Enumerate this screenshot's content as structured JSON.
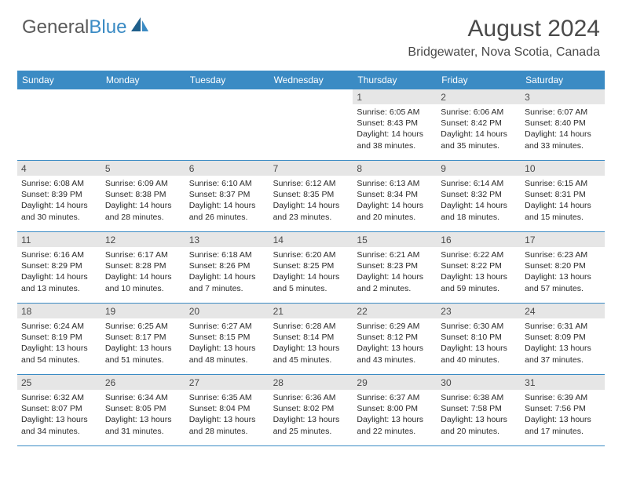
{
  "logo": {
    "text1": "General",
    "text2": "Blue"
  },
  "header": {
    "month_title": "August 2024",
    "location": "Bridgewater, Nova Scotia, Canada"
  },
  "colors": {
    "brand_blue": "#3b8bc4",
    "logo_gray": "#5a5a5a",
    "daynum_bg": "#e6e6e6",
    "text": "#4a4a4a",
    "body_text": "#2a2a2a",
    "background": "#ffffff"
  },
  "typography": {
    "month_fontsize": 30,
    "location_fontsize": 16,
    "dow_fontsize": 12,
    "daynum_fontsize": 12,
    "body_fontsize": 10.5
  },
  "days_of_week": [
    "Sunday",
    "Monday",
    "Tuesday",
    "Wednesday",
    "Thursday",
    "Friday",
    "Saturday"
  ],
  "labels": {
    "sunrise": "Sunrise:",
    "sunset": "Sunset:",
    "daylight": "Daylight:"
  },
  "calendar": {
    "type": "calendar",
    "weeks": [
      [
        null,
        null,
        null,
        null,
        {
          "n": "1",
          "sr": "6:05 AM",
          "ss": "8:43 PM",
          "dl": "14 hours and 38 minutes."
        },
        {
          "n": "2",
          "sr": "6:06 AM",
          "ss": "8:42 PM",
          "dl": "14 hours and 35 minutes."
        },
        {
          "n": "3",
          "sr": "6:07 AM",
          "ss": "8:40 PM",
          "dl": "14 hours and 33 minutes."
        }
      ],
      [
        {
          "n": "4",
          "sr": "6:08 AM",
          "ss": "8:39 PM",
          "dl": "14 hours and 30 minutes."
        },
        {
          "n": "5",
          "sr": "6:09 AM",
          "ss": "8:38 PM",
          "dl": "14 hours and 28 minutes."
        },
        {
          "n": "6",
          "sr": "6:10 AM",
          "ss": "8:37 PM",
          "dl": "14 hours and 26 minutes."
        },
        {
          "n": "7",
          "sr": "6:12 AM",
          "ss": "8:35 PM",
          "dl": "14 hours and 23 minutes."
        },
        {
          "n": "8",
          "sr": "6:13 AM",
          "ss": "8:34 PM",
          "dl": "14 hours and 20 minutes."
        },
        {
          "n": "9",
          "sr": "6:14 AM",
          "ss": "8:32 PM",
          "dl": "14 hours and 18 minutes."
        },
        {
          "n": "10",
          "sr": "6:15 AM",
          "ss": "8:31 PM",
          "dl": "14 hours and 15 minutes."
        }
      ],
      [
        {
          "n": "11",
          "sr": "6:16 AM",
          "ss": "8:29 PM",
          "dl": "14 hours and 13 minutes."
        },
        {
          "n": "12",
          "sr": "6:17 AM",
          "ss": "8:28 PM",
          "dl": "14 hours and 10 minutes."
        },
        {
          "n": "13",
          "sr": "6:18 AM",
          "ss": "8:26 PM",
          "dl": "14 hours and 7 minutes."
        },
        {
          "n": "14",
          "sr": "6:20 AM",
          "ss": "8:25 PM",
          "dl": "14 hours and 5 minutes."
        },
        {
          "n": "15",
          "sr": "6:21 AM",
          "ss": "8:23 PM",
          "dl": "14 hours and 2 minutes."
        },
        {
          "n": "16",
          "sr": "6:22 AM",
          "ss": "8:22 PM",
          "dl": "13 hours and 59 minutes."
        },
        {
          "n": "17",
          "sr": "6:23 AM",
          "ss": "8:20 PM",
          "dl": "13 hours and 57 minutes."
        }
      ],
      [
        {
          "n": "18",
          "sr": "6:24 AM",
          "ss": "8:19 PM",
          "dl": "13 hours and 54 minutes."
        },
        {
          "n": "19",
          "sr": "6:25 AM",
          "ss": "8:17 PM",
          "dl": "13 hours and 51 minutes."
        },
        {
          "n": "20",
          "sr": "6:27 AM",
          "ss": "8:15 PM",
          "dl": "13 hours and 48 minutes."
        },
        {
          "n": "21",
          "sr": "6:28 AM",
          "ss": "8:14 PM",
          "dl": "13 hours and 45 minutes."
        },
        {
          "n": "22",
          "sr": "6:29 AM",
          "ss": "8:12 PM",
          "dl": "13 hours and 43 minutes."
        },
        {
          "n": "23",
          "sr": "6:30 AM",
          "ss": "8:10 PM",
          "dl": "13 hours and 40 minutes."
        },
        {
          "n": "24",
          "sr": "6:31 AM",
          "ss": "8:09 PM",
          "dl": "13 hours and 37 minutes."
        }
      ],
      [
        {
          "n": "25",
          "sr": "6:32 AM",
          "ss": "8:07 PM",
          "dl": "13 hours and 34 minutes."
        },
        {
          "n": "26",
          "sr": "6:34 AM",
          "ss": "8:05 PM",
          "dl": "13 hours and 31 minutes."
        },
        {
          "n": "27",
          "sr": "6:35 AM",
          "ss": "8:04 PM",
          "dl": "13 hours and 28 minutes."
        },
        {
          "n": "28",
          "sr": "6:36 AM",
          "ss": "8:02 PM",
          "dl": "13 hours and 25 minutes."
        },
        {
          "n": "29",
          "sr": "6:37 AM",
          "ss": "8:00 PM",
          "dl": "13 hours and 22 minutes."
        },
        {
          "n": "30",
          "sr": "6:38 AM",
          "ss": "7:58 PM",
          "dl": "13 hours and 20 minutes."
        },
        {
          "n": "31",
          "sr": "6:39 AM",
          "ss": "7:56 PM",
          "dl": "13 hours and 17 minutes."
        }
      ]
    ]
  }
}
